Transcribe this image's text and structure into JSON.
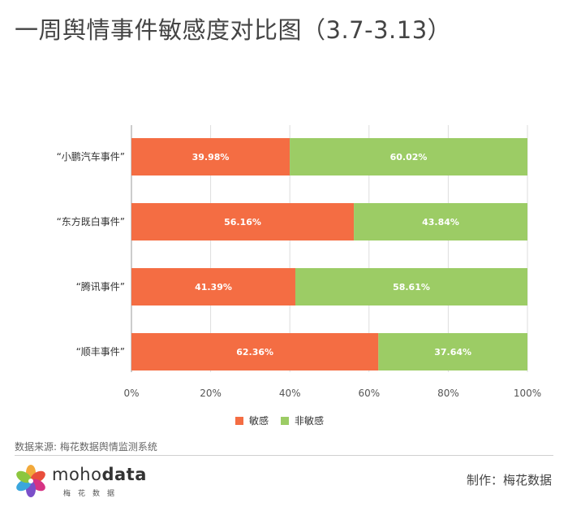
{
  "title": "一周舆情事件敏感度对比图（3.7-3.13）",
  "chart_data": {
    "type": "bar",
    "orientation": "horizontal",
    "stacked": true,
    "categories": [
      "“小鹏汽车事件”",
      "“东方既白事件”",
      "“腾讯事件”",
      "“顺丰事件”"
    ],
    "series": [
      {
        "name": "敏感",
        "values": [
          39.98,
          56.16,
          41.39,
          62.36
        ],
        "labels": [
          "39.98%",
          "56.16%",
          "41.39%",
          "62.36%"
        ],
        "color": "#f46d43"
      },
      {
        "name": "非敏感",
        "values": [
          60.02,
          43.84,
          58.61,
          37.64
        ],
        "labels": [
          "60.02%",
          "43.84%",
          "58.61%",
          "37.64%"
        ],
        "color": "#9ccc65"
      }
    ],
    "x_ticks": [
      "0%",
      "20%",
      "40%",
      "60%",
      "80%",
      "100%"
    ],
    "xlim": [
      0,
      100
    ],
    "grid": true,
    "legend_position": "bottom-center"
  },
  "footer": {
    "source": "数据来源: 梅花数据舆情监测系统",
    "credit": "制作：梅花数据"
  },
  "logo": {
    "text_light": "moho",
    "text_bold": "data",
    "subtitle": "梅花数据"
  }
}
